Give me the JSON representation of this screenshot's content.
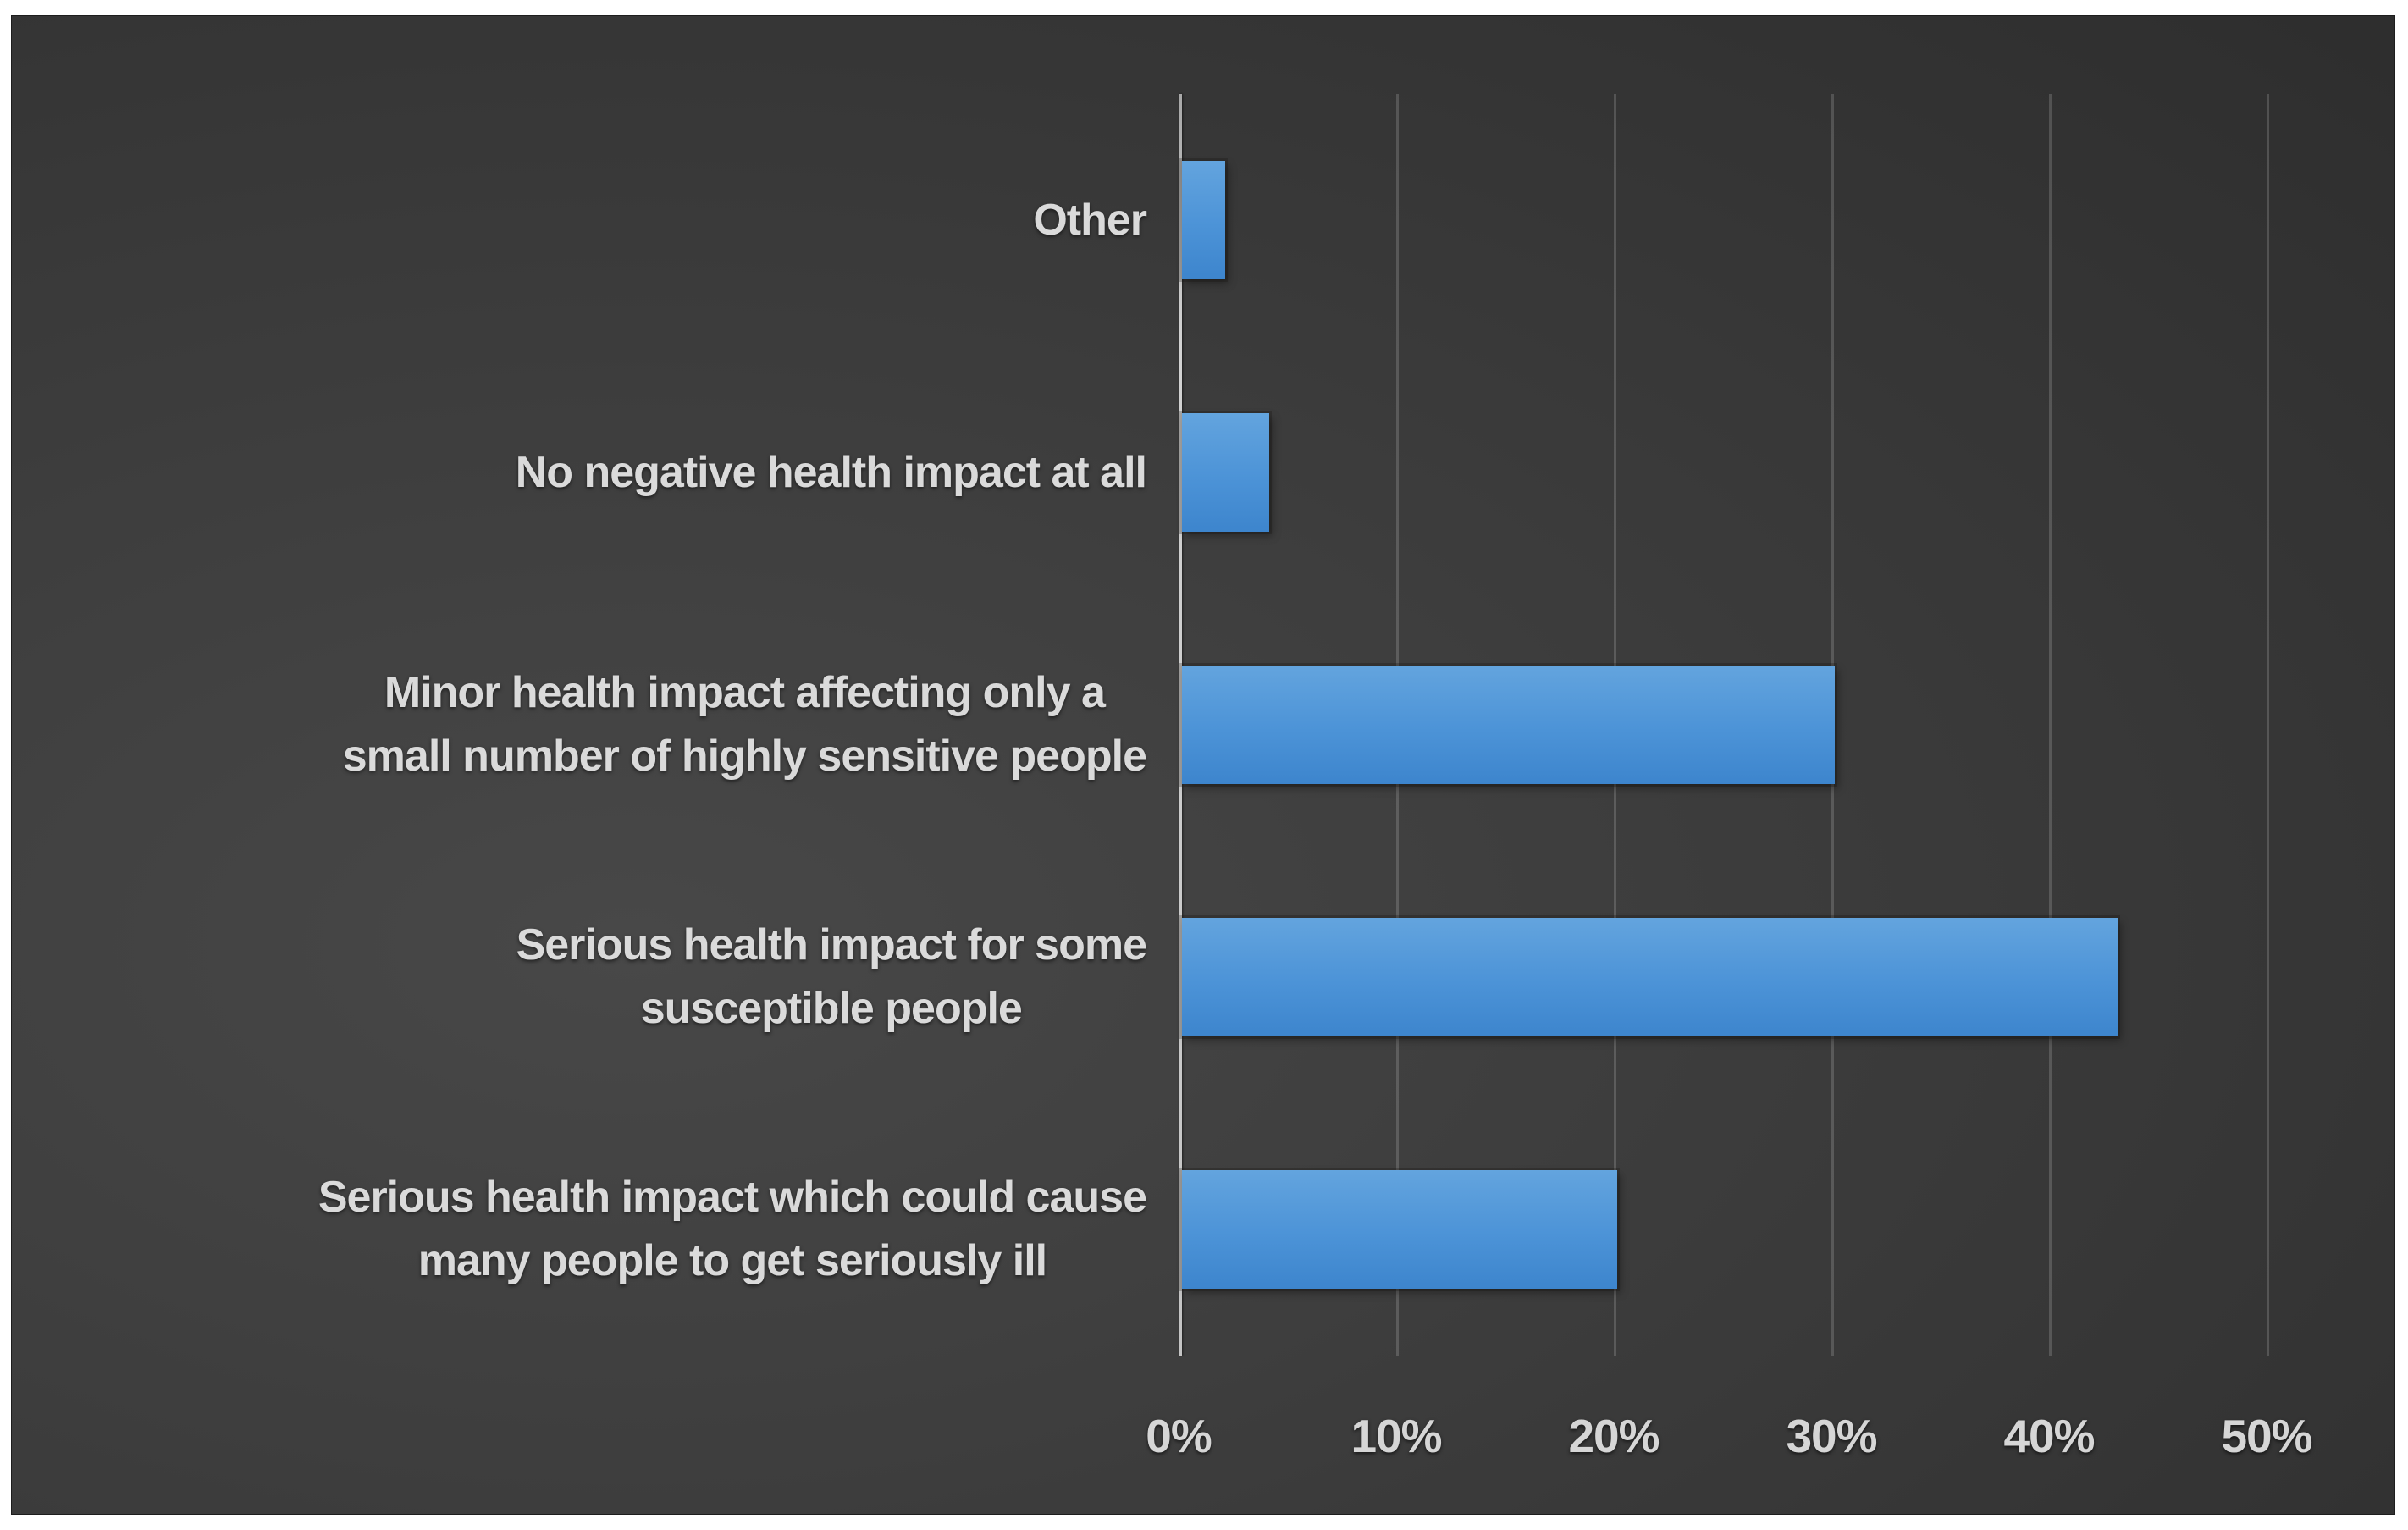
{
  "chart_data": {
    "type": "bar",
    "orientation": "horizontal",
    "title": "",
    "xlabel": "",
    "ylabel": "",
    "categories": [
      "Other",
      "No negative health impact at all",
      "Minor health impact affecting only a\nsmall number of highly sensitive people",
      "Serious health impact for some\nsusceptible people",
      "Serious health impact which could cause\nmany people to get seriously ill"
    ],
    "values": [
      2,
      4,
      30,
      43,
      20
    ],
    "unit": "%",
    "xlim": [
      0,
      50
    ],
    "xtick_step": 10,
    "xtick_labels": [
      "0%",
      "10%",
      "20%",
      "30%",
      "40%",
      "50%"
    ],
    "grid": true,
    "legend": false,
    "colors": {
      "bar_top": "#63a4de",
      "bar_bottom": "#3d85cd",
      "panel_background": "#3a3a3a",
      "frame": "#ffffff",
      "gridline": "rgba(255,255,255,0.16)",
      "axis_line": "#c4c4c4",
      "text": "#dadada"
    }
  }
}
